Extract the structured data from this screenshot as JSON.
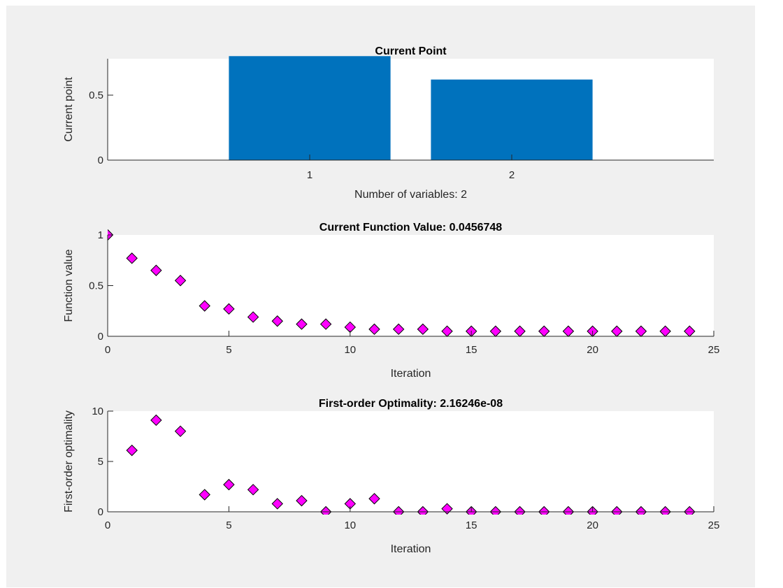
{
  "chart_data": [
    {
      "type": "bar",
      "title": "Current Point",
      "xlabel": "Number of variables: 2",
      "ylabel": "Current point",
      "categories": [
        "1",
        "2"
      ],
      "values": [
        0.8,
        0.62
      ],
      "xlim": [
        0,
        3
      ],
      "ylim": [
        0,
        0.78
      ],
      "yticks": [
        0,
        0.5
      ],
      "color": "#0072bd",
      "grid": false
    },
    {
      "type": "scatter",
      "title": "Current Function Value: 0.0456748",
      "xlabel": "Iteration",
      "ylabel": "Function value",
      "x": [
        0,
        1,
        2,
        3,
        4,
        5,
        6,
        7,
        8,
        9,
        10,
        11,
        12,
        13,
        14,
        15,
        16,
        17,
        18,
        19,
        20,
        21,
        22,
        23,
        24
      ],
      "y": [
        1.0,
        0.77,
        0.65,
        0.55,
        0.3,
        0.27,
        0.19,
        0.15,
        0.12,
        0.12,
        0.09,
        0.07,
        0.07,
        0.07,
        0.05,
        0.05,
        0.05,
        0.05,
        0.05,
        0.05,
        0.05,
        0.05,
        0.05,
        0.05,
        0.05
      ],
      "xlim": [
        0,
        25
      ],
      "ylim": [
        0,
        1
      ],
      "xticks": [
        0,
        5,
        10,
        15,
        20,
        25
      ],
      "yticks": [
        0,
        0.5,
        1
      ],
      "marker": "diamond",
      "marker_color": "#ff00ff",
      "grid": false
    },
    {
      "type": "scatter",
      "title": "First-order Optimality: 2.16246e-08",
      "xlabel": "Iteration",
      "ylabel": "First-order optimality",
      "x": [
        1,
        2,
        3,
        4,
        5,
        6,
        7,
        8,
        9,
        10,
        11,
        12,
        13,
        14,
        15,
        16,
        17,
        18,
        19,
        20,
        21,
        22,
        23,
        24
      ],
      "y": [
        6.1,
        9.1,
        8.0,
        1.7,
        2.7,
        2.2,
        0.8,
        1.1,
        0.0,
        0.8,
        1.3,
        0.0,
        0.0,
        0.3,
        0.0,
        0.0,
        0.0,
        0.0,
        0.0,
        0.0,
        0.0,
        0.0,
        0.0,
        0.0
      ],
      "xlim": [
        0,
        25
      ],
      "ylim": [
        0,
        10
      ],
      "xticks": [
        0,
        5,
        10,
        15,
        20,
        25
      ],
      "yticks": [
        0,
        5,
        10
      ],
      "marker": "diamond",
      "marker_color": "#ff00ff",
      "grid": false
    }
  ]
}
